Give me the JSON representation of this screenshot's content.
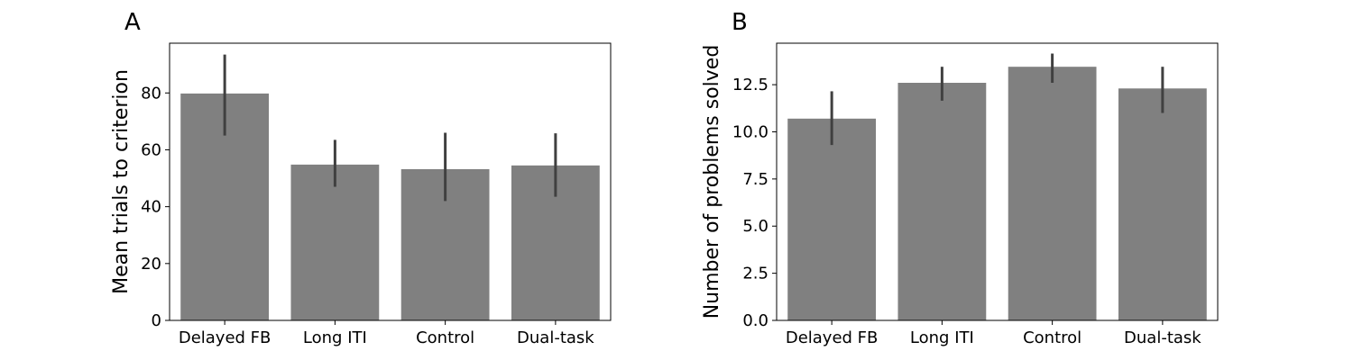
{
  "figure": {
    "bar_color": "#808080",
    "error_color": "#404040"
  },
  "chart_data": [
    {
      "type": "bar",
      "panel": "A",
      "title": "",
      "xlabel": "",
      "ylabel": "Mean trials to criterion",
      "categories": [
        "Delayed FB",
        "Long ITI",
        "Control",
        "Dual-task"
      ],
      "values": [
        79.8,
        54.8,
        53.2,
        54.5
      ],
      "error_low": [
        65.0,
        47.0,
        42.0,
        43.5
      ],
      "error_high": [
        93.5,
        63.5,
        66.0,
        65.8
      ],
      "ylim": [
        0,
        97.5
      ],
      "yticks": [
        0,
        20,
        40,
        60,
        80
      ],
      "ytick_labels": [
        "0",
        "20",
        "40",
        "60",
        "80"
      ],
      "grid": false,
      "legend": "none"
    },
    {
      "type": "bar",
      "panel": "B",
      "title": "",
      "xlabel": "",
      "ylabel": "Number of problems solved",
      "categories": [
        "Delayed FB",
        "Long ITI",
        "Control",
        "Dual-task"
      ],
      "values": [
        10.7,
        12.6,
        13.45,
        12.3
      ],
      "error_low": [
        9.3,
        11.65,
        12.6,
        11.0
      ],
      "error_high": [
        12.15,
        13.45,
        14.15,
        13.45
      ],
      "ylim": [
        0,
        14.7
      ],
      "yticks": [
        0,
        2.5,
        5,
        7.5,
        10,
        12.5
      ],
      "ytick_labels": [
        "0.0",
        "2.5",
        "5.0",
        "7.5",
        "10.0",
        "12.5"
      ],
      "grid": false,
      "legend": "none"
    }
  ]
}
